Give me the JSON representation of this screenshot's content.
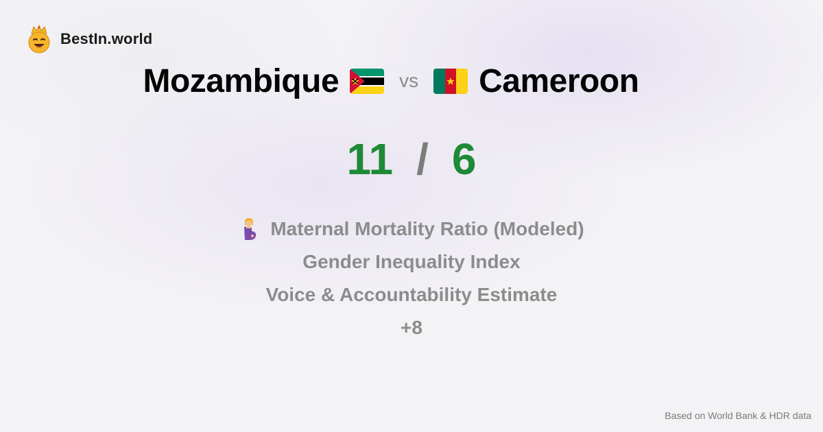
{
  "brand": {
    "name": "BestIn.world",
    "logo_icon": "crowned-smiley-icon"
  },
  "comparison": {
    "left_country": "Mozambique",
    "left_flag_icon": "mozambique-flag-icon",
    "vs_label": "vs",
    "right_country": "Cameroon",
    "right_flag_icon": "cameroon-flag-icon"
  },
  "score": {
    "left": "11",
    "separator": "/",
    "right": "6",
    "color": "#1e8a36"
  },
  "metrics": [
    {
      "label": "Maternal Mortality Ratio (Modeled)",
      "icon": "pregnant-woman-icon"
    },
    {
      "label": "Gender Inequality Index"
    },
    {
      "label": "Voice & Accountability Estimate"
    },
    {
      "label": "+8"
    }
  ],
  "footer": {
    "source_note": "Based on World Bank & HDR data"
  }
}
